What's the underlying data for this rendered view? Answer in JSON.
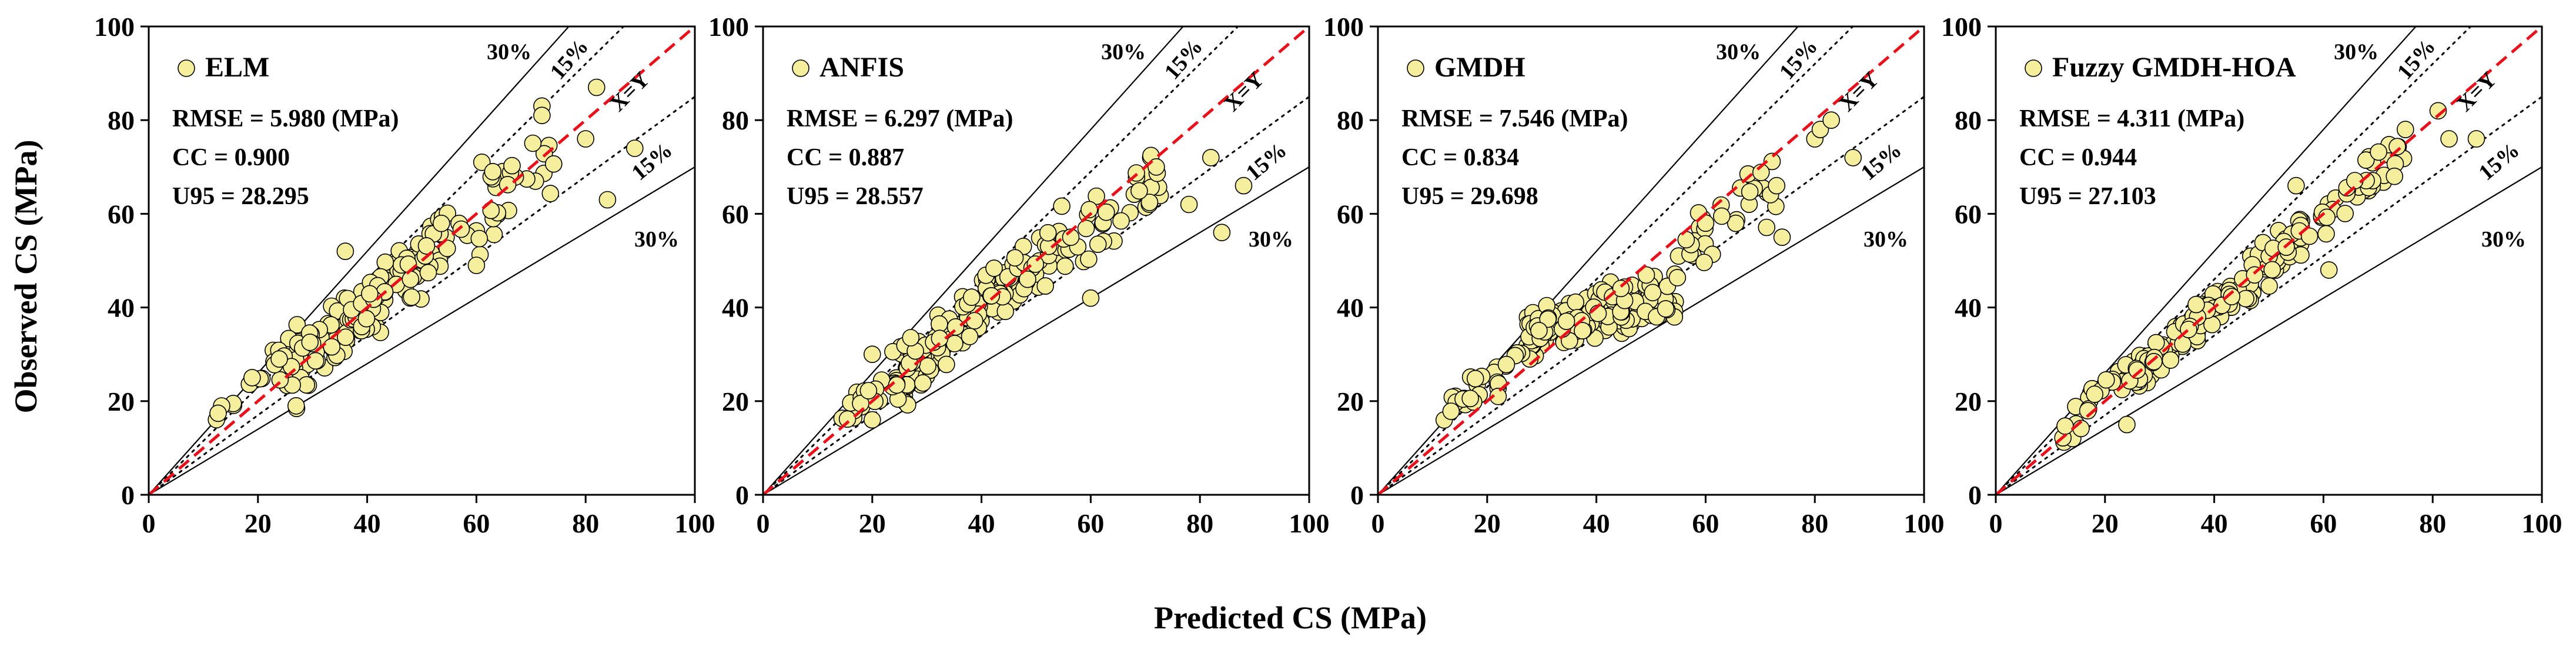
{
  "chart_data": [
    {
      "type": "scatter",
      "title": "",
      "series": [
        {
          "name": "ELM"
        }
      ],
      "stats": [
        "RMSE = 5.980 (MPa)",
        "CC = 0.900",
        "U95 = 28.295"
      ],
      "band_labels": {
        "upper30": "30%",
        "upper15": "15%",
        "ideal": "X=Y",
        "lower15": "15%",
        "lower30": "30%"
      },
      "xlim": [
        0,
        100
      ],
      "ylim": [
        0,
        100
      ],
      "x_ticks": [
        "0",
        "20",
        "40",
        "60",
        "80",
        "100"
      ],
      "y_ticks": [
        "0",
        "20",
        "40",
        "60",
        "80",
        "100"
      ],
      "seed": 11,
      "clusters": [
        {
          "n": 150,
          "xmin": 25,
          "xmax": 55,
          "slope": 1.0,
          "yoff": 0,
          "noise": 6
        },
        {
          "n": 30,
          "xmin": 12,
          "xmax": 30,
          "slope": 1.05,
          "yoff": 3,
          "noise": 4
        },
        {
          "n": 30,
          "xmin": 55,
          "xmax": 75,
          "slope": 0.98,
          "yoff": 0,
          "noise": 7
        }
      ],
      "points": [
        {
          "x": 82,
          "y": 87
        },
        {
          "x": 72,
          "y": 83
        },
        {
          "x": 72,
          "y": 81
        },
        {
          "x": 80,
          "y": 76
        },
        {
          "x": 89,
          "y": 74
        },
        {
          "x": 84,
          "y": 63
        },
        {
          "x": 61,
          "y": 71
        },
        {
          "x": 63,
          "y": 69
        },
        {
          "x": 60,
          "y": 49
        },
        {
          "x": 36,
          "y": 52
        },
        {
          "x": 27,
          "y": 19
        }
      ]
    },
    {
      "type": "scatter",
      "title": "",
      "series": [
        {
          "name": "ANFIS"
        }
      ],
      "stats": [
        "RMSE = 6.297 (MPa)",
        "CC = 0.887",
        "U95 = 28.557"
      ],
      "band_labels": {
        "upper30": "30%",
        "upper15": "15%",
        "ideal": "X=Y",
        "lower15": "15%",
        "lower30": "30%"
      },
      "xlim": [
        0,
        100
      ],
      "ylim": [
        0,
        100
      ],
      "x_ticks": [
        "0",
        "20",
        "40",
        "60",
        "80",
        "100"
      ],
      "y_ticks": [
        "0",
        "20",
        "40",
        "60",
        "80",
        "100"
      ],
      "seed": 23,
      "clusters": [
        {
          "n": 150,
          "xmin": 24,
          "xmax": 55,
          "slope": 1.0,
          "yoff": 0,
          "noise": 6
        },
        {
          "n": 25,
          "xmin": 13,
          "xmax": 28,
          "slope": 1.0,
          "yoff": 2,
          "noise": 4
        },
        {
          "n": 35,
          "xmin": 55,
          "xmax": 73,
          "slope": 0.9,
          "yoff": 2,
          "noise": 6
        }
      ],
      "points": [
        {
          "x": 72,
          "y": 70
        },
        {
          "x": 82,
          "y": 72
        },
        {
          "x": 78,
          "y": 62
        },
        {
          "x": 84,
          "y": 56
        },
        {
          "x": 88,
          "y": 66
        },
        {
          "x": 60,
          "y": 42
        },
        {
          "x": 20,
          "y": 30
        },
        {
          "x": 20,
          "y": 16
        }
      ]
    },
    {
      "type": "scatter",
      "title": "",
      "series": [
        {
          "name": "GMDH"
        }
      ],
      "stats": [
        "RMSE = 7.546 (MPa)",
        "CC = 0.834",
        "U95 = 29.698"
      ],
      "band_labels": {
        "upper30": "30%",
        "upper15": "15%",
        "ideal": "X=Y",
        "lower15": "15%",
        "lower30": "30%"
      },
      "xlim": [
        0,
        100
      ],
      "ylim": [
        0,
        100
      ],
      "x_ticks": [
        "0",
        "20",
        "40",
        "60",
        "80",
        "100"
      ],
      "y_ticks": [
        "0",
        "20",
        "40",
        "60",
        "80",
        "100"
      ],
      "seed": 37,
      "clusters": [
        {
          "n": 170,
          "xmin": 27,
          "xmax": 55,
          "slope": 0.3,
          "yoff": 26,
          "noise": 4.5
        },
        {
          "n": 25,
          "xmin": 12,
          "xmax": 27,
          "slope": 0.8,
          "yoff": 8,
          "noise": 3.5
        },
        {
          "n": 30,
          "xmin": 55,
          "xmax": 73,
          "slope": 0.8,
          "yoff": 8,
          "noise": 7
        }
      ],
      "points": [
        {
          "x": 80,
          "y": 76
        },
        {
          "x": 81,
          "y": 78
        },
        {
          "x": 83,
          "y": 80
        },
        {
          "x": 87,
          "y": 72
        },
        {
          "x": 73,
          "y": 66
        },
        {
          "x": 74,
          "y": 55
        },
        {
          "x": 60,
          "y": 58
        },
        {
          "x": 22,
          "y": 21
        }
      ]
    },
    {
      "type": "scatter",
      "title": "",
      "series": [
        {
          "name": "Fuzzy GMDH-HOA"
        }
      ],
      "stats": [
        "RMSE = 4.311 (MPa)",
        "CC = 0.944",
        "U95 = 27.103"
      ],
      "band_labels": {
        "upper30": "30%",
        "upper15": "15%",
        "ideal": "X=Y",
        "lower15": "15%",
        "lower30": "30%"
      },
      "xlim": [
        0,
        100
      ],
      "ylim": [
        0,
        100
      ],
      "x_ticks": [
        "0",
        "20",
        "40",
        "60",
        "80",
        "100"
      ],
      "y_ticks": [
        "0",
        "20",
        "40",
        "60",
        "80",
        "100"
      ],
      "seed": 51,
      "clusters": [
        {
          "n": 160,
          "xmin": 25,
          "xmax": 56,
          "slope": 1.0,
          "yoff": 0,
          "noise": 4
        },
        {
          "n": 28,
          "xmin": 12,
          "xmax": 26,
          "slope": 1.0,
          "yoff": 1,
          "noise": 3
        },
        {
          "n": 35,
          "xmin": 56,
          "xmax": 75,
          "slope": 1.0,
          "yoff": -1,
          "noise": 4.5
        }
      ],
      "points": [
        {
          "x": 75,
          "y": 78
        },
        {
          "x": 81,
          "y": 82
        },
        {
          "x": 83,
          "y": 76
        },
        {
          "x": 88,
          "y": 76
        },
        {
          "x": 73,
          "y": 68
        },
        {
          "x": 55,
          "y": 66
        },
        {
          "x": 61,
          "y": 48
        },
        {
          "x": 24,
          "y": 15
        }
      ]
    }
  ],
  "shared": {
    "xlabel": "Predicted CS (MPa)",
    "ylabel": "Observed CS (MPa)",
    "marker_fill": "#f5ee9c",
    "marker_stroke": "#000000",
    "ideal_line_color": "#e8101a"
  }
}
